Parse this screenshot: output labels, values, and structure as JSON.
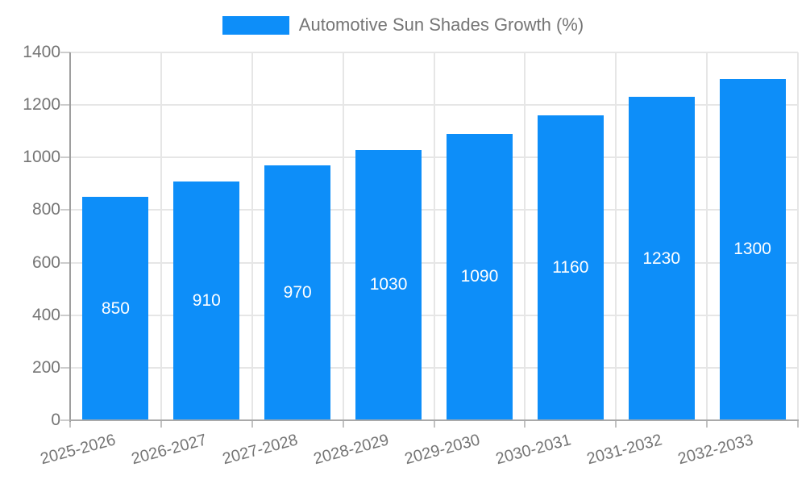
{
  "chart_data": {
    "type": "bar",
    "title": "Automotive Sun Shades Growth (%)",
    "categories": [
      "2025-2026",
      "2026-2027",
      "2027-2028",
      "2028-2029",
      "2029-2030",
      "2030-2031",
      "2031-2032",
      "2032-2033"
    ],
    "values": [
      850,
      910,
      970,
      1030,
      1090,
      1160,
      1230,
      1300
    ],
    "ytick_labels": [
      "0",
      "200",
      "400",
      "600",
      "800",
      "1000",
      "1200",
      "1400"
    ],
    "ylim": [
      0,
      1400
    ],
    "ytick_step": 200,
    "xlabel": "",
    "ylabel": "",
    "grid": true,
    "legend_position": "top",
    "colors": {
      "bar": "#0d8ef9",
      "bar_value_text": "#ffffff",
      "axis_text": "#757575",
      "grid_line": "#e6e6e6",
      "axis_line": "#9e9e9e"
    }
  }
}
